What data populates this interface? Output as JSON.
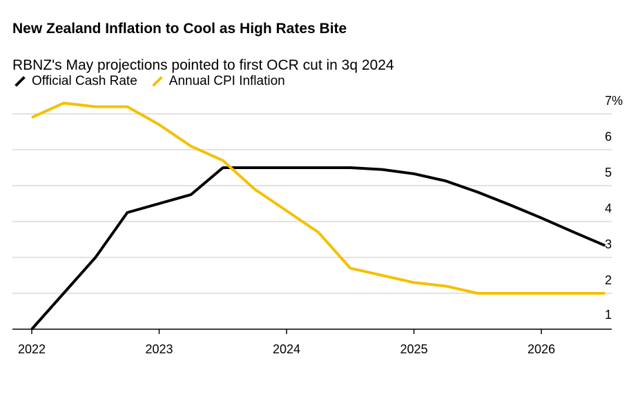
{
  "title": "New Zealand Inflation to Cool as High Rates Bite",
  "subtitle": "RBNZ's May projections pointed to first OCR cut in 3q 2024",
  "legend": [
    {
      "label": "Official Cash Rate",
      "color": "#000000"
    },
    {
      "label": "Annual CPI Inflation",
      "color": "#f5c000"
    }
  ],
  "chart_data": {
    "type": "line",
    "x_range": [
      2022.0,
      2026.75
    ],
    "ylim": [
      1,
      7
    ],
    "y_ticks": [
      {
        "value": 7,
        "label": "7%"
      },
      {
        "value": 6,
        "label": "6"
      },
      {
        "value": 5,
        "label": "5"
      },
      {
        "value": 4,
        "label": "4"
      },
      {
        "value": 3,
        "label": "3"
      },
      {
        "value": 2,
        "label": "2"
      },
      {
        "value": 1,
        "label": "1"
      }
    ],
    "x_ticks": [
      {
        "value": 2022,
        "label": "2022"
      },
      {
        "value": 2023,
        "label": "2023"
      },
      {
        "value": 2024,
        "label": "2024"
      },
      {
        "value": 2025,
        "label": "2025"
      },
      {
        "value": 2026,
        "label": "2026"
      }
    ],
    "grid": true,
    "y_axis_position": "right",
    "series": [
      {
        "name": "Official Cash Rate",
        "color": "#000000",
        "points": [
          [
            2022.0,
            1.0
          ],
          [
            2022.5,
            3.0
          ],
          [
            2022.75,
            4.25
          ],
          [
            2023.25,
            4.75
          ],
          [
            2023.5,
            5.5
          ],
          [
            2023.75,
            5.5
          ],
          [
            2024.5,
            5.5
          ],
          [
            2024.75,
            5.45
          ],
          [
            2025.0,
            5.33
          ],
          [
            2025.25,
            5.13
          ],
          [
            2025.5,
            4.82
          ],
          [
            2025.75,
            4.47
          ],
          [
            2026.0,
            4.1
          ],
          [
            2026.25,
            3.71
          ],
          [
            2026.5,
            3.33
          ]
        ]
      },
      {
        "name": "Annual CPI Inflation",
        "color": "#f5c000",
        "points": [
          [
            2022.0,
            6.9
          ],
          [
            2022.25,
            7.3
          ],
          [
            2022.5,
            7.2
          ],
          [
            2022.75,
            7.2
          ],
          [
            2023.0,
            6.7
          ],
          [
            2023.25,
            6.1
          ],
          [
            2023.5,
            5.7
          ],
          [
            2023.75,
            4.9
          ],
          [
            2024.0,
            4.3
          ],
          [
            2024.25,
            3.7
          ],
          [
            2024.5,
            2.7
          ],
          [
            2024.75,
            2.5
          ],
          [
            2025.0,
            2.3
          ],
          [
            2025.25,
            2.2
          ],
          [
            2025.5,
            2.0
          ],
          [
            2025.75,
            2.0
          ],
          [
            2026.0,
            2.0
          ],
          [
            2026.25,
            2.0
          ],
          [
            2026.5,
            2.0
          ]
        ]
      }
    ]
  }
}
